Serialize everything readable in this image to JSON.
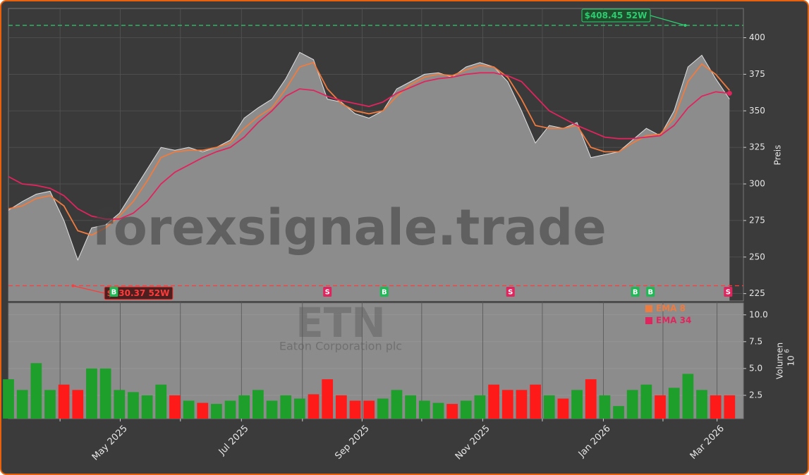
{
  "chart_data": [
    {
      "type": "line",
      "ylabel": "Preis",
      "watermark": "forexsignale.trade",
      "ticker": "ETN",
      "company": "Eaton Corporation plc",
      "x": [
        0,
        1,
        2,
        3,
        4,
        5,
        6,
        7,
        8,
        9,
        10,
        11,
        12,
        13,
        14,
        15,
        16,
        17,
        18,
        19,
        20,
        21,
        22,
        23,
        24,
        25,
        26,
        27,
        28,
        29,
        30,
        31,
        32,
        33,
        34,
        35,
        36,
        37,
        38,
        39,
        40,
        41,
        42,
        43,
        44,
        45,
        46,
        47,
        48,
        49,
        50,
        51,
        52
      ],
      "xlim": [
        0,
        53
      ],
      "xticks": [
        {
          "value": 8.06,
          "label": "May 2025"
        },
        {
          "value": 16.8,
          "label": "Jul 2025"
        },
        {
          "value": 25.5,
          "label": "Sep 2025"
        },
        {
          "value": 34.2,
          "label": "Nov 2025"
        },
        {
          "value": 42.9,
          "label": "Jan 2026"
        },
        {
          "value": 51.1,
          "label": "Mar 2026"
        }
      ],
      "xminorticks": [
        3.72,
        12.4,
        21.2,
        29.8,
        38.5,
        47.2
      ],
      "values": [
        282,
        288,
        293,
        295,
        275,
        248,
        270,
        272,
        280,
        295,
        310,
        325,
        323,
        325,
        322,
        325,
        330,
        345,
        352,
        358,
        372,
        390,
        385,
        358,
        356,
        348,
        345,
        350,
        365,
        370,
        375,
        376,
        373,
        380,
        383,
        380,
        370,
        350,
        328,
        340,
        338,
        342,
        318,
        320,
        322,
        330,
        338,
        333,
        350,
        380,
        388,
        372,
        358
      ],
      "color": "#8c8c8c",
      "line_color": "#e0e0e0",
      "series": [
        {
          "name": "EMA 8",
          "color": "#f07b3f",
          "values": [
            283,
            285,
            290,
            292,
            285,
            268,
            265,
            270,
            278,
            288,
            302,
            318,
            322,
            323,
            323,
            325,
            328,
            338,
            346,
            352,
            365,
            380,
            383,
            365,
            355,
            350,
            348,
            350,
            360,
            368,
            373,
            375,
            374,
            378,
            381,
            380,
            373,
            358,
            340,
            338,
            338,
            340,
            325,
            322,
            322,
            328,
            333,
            334,
            345,
            370,
            382,
            375,
            364
          ]
        },
        {
          "name": "EMA 34",
          "color": "#e0245e",
          "values": [
            305,
            300,
            299,
            297,
            292,
            283,
            278,
            276,
            276,
            280,
            288,
            300,
            308,
            313,
            318,
            322,
            325,
            332,
            342,
            350,
            360,
            365,
            364,
            360,
            357,
            355,
            353,
            356,
            362,
            366,
            370,
            372,
            373,
            375,
            376,
            376,
            374,
            370,
            360,
            350,
            345,
            340,
            336,
            332,
            331,
            331,
            332,
            333,
            340,
            352,
            360,
            363,
            362
          ]
        }
      ],
      "ylim": [
        220,
        420
      ],
      "yticks": [
        225,
        250,
        275,
        300,
        325,
        350,
        375,
        400
      ],
      "grid": true,
      "annotations": [
        {
          "text": "$408.45 52W",
          "value": 408.45,
          "x": 48.8,
          "color": "#2ecc71"
        },
        {
          "text": "$230.37 52W",
          "value": 230.37,
          "x": 4.65,
          "color": "#ff3b3b"
        }
      ],
      "signals": [
        {
          "label": "B",
          "x": 7.6,
          "color": "#1db954"
        },
        {
          "label": "S",
          "x": 23,
          "color": "#e0245e"
        },
        {
          "label": "B",
          "x": 27.1,
          "color": "#1db954"
        },
        {
          "label": "S",
          "x": 36.2,
          "color": "#e0245e"
        },
        {
          "label": "B",
          "x": 45.2,
          "color": "#1db954"
        },
        {
          "label": "B",
          "x": 46.3,
          "color": "#1db954"
        },
        {
          "label": "S",
          "x": 51.9,
          "color": "#e0245e"
        }
      ]
    },
    {
      "type": "bar",
      "ylabel": "Volumen",
      "scale_base": "10",
      "scale_exponent": "6",
      "values": [
        4,
        3,
        5.5,
        3,
        3.5,
        3,
        5,
        5,
        3,
        2.8,
        2.5,
        3.5,
        2.5,
        2,
        1.8,
        1.7,
        2,
        2.5,
        3,
        2,
        2.5,
        2.2,
        2.6,
        4,
        2.5,
        2,
        2,
        2.2,
        3,
        2.5,
        2,
        1.8,
        1.7,
        2,
        2.5,
        3.5,
        3,
        3,
        3.5,
        2.5,
        2.2,
        3,
        4,
        2.5,
        1.5,
        3,
        3.5,
        2.5,
        3.2,
        4.5,
        3,
        2.5,
        2.5
      ],
      "up_color": "#1e9e2a",
      "down_color": "#ff1a1a",
      "ylim": [
        0.33,
        11.1
      ],
      "yticks": [
        2.5,
        {
          "value": 5,
          "label": "5.0"
        },
        7.5,
        {
          "value": 10,
          "label": "10.0"
        }
      ]
    }
  ]
}
